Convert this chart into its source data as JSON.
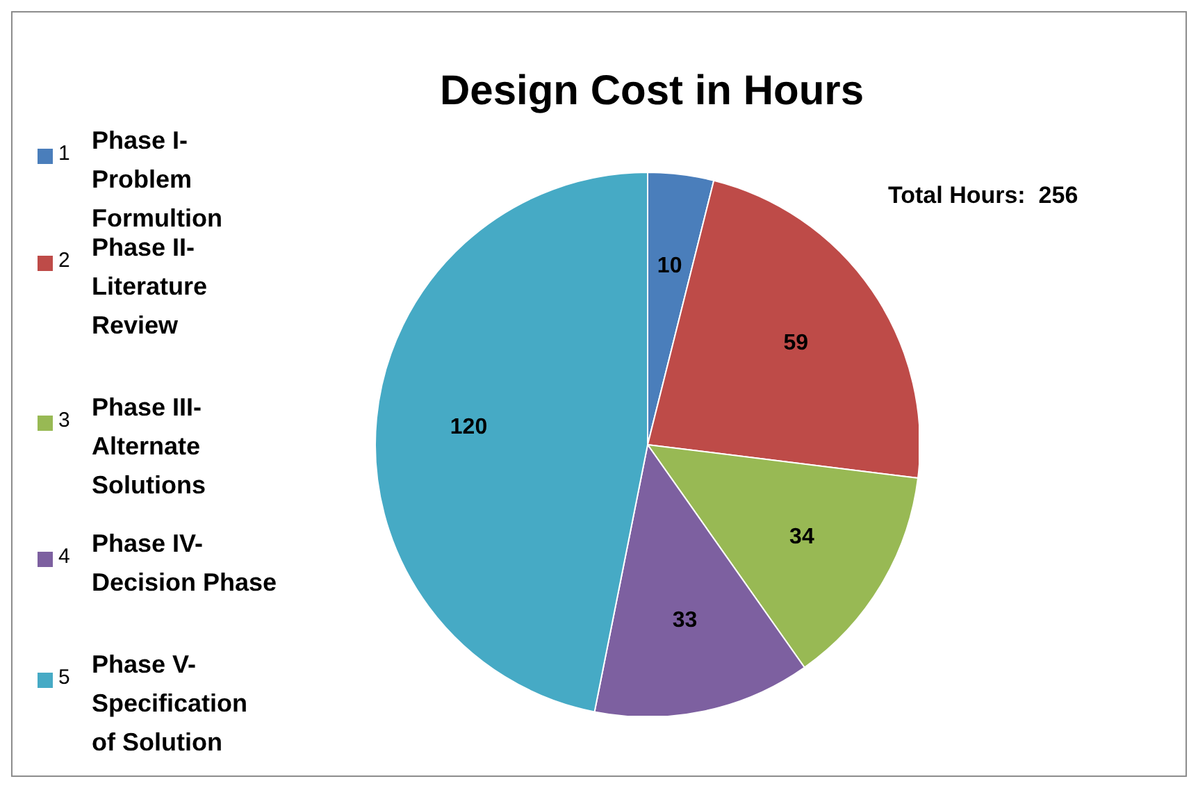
{
  "chart_data": {
    "type": "pie",
    "title": "Design Cost in Hours",
    "categories": [
      "1",
      "2",
      "3",
      "4",
      "5"
    ],
    "values": [
      10,
      59,
      34,
      33,
      120
    ],
    "colors": [
      "#4a7ebb",
      "#be4b48",
      "#98b954",
      "#7d60a0",
      "#46aac5"
    ],
    "data_labels": true,
    "legend": "left",
    "annotations": [
      "Phase I-\nProblem\nFormultion",
      "Phase II-\nLiterature\nReview",
      "Phase III-\nAlternate\nSolutions",
      "Phase IV-\nDecision Phase",
      "Phase V-\nSpecification\nof Solution",
      "Total Hours:  256"
    ]
  }
}
